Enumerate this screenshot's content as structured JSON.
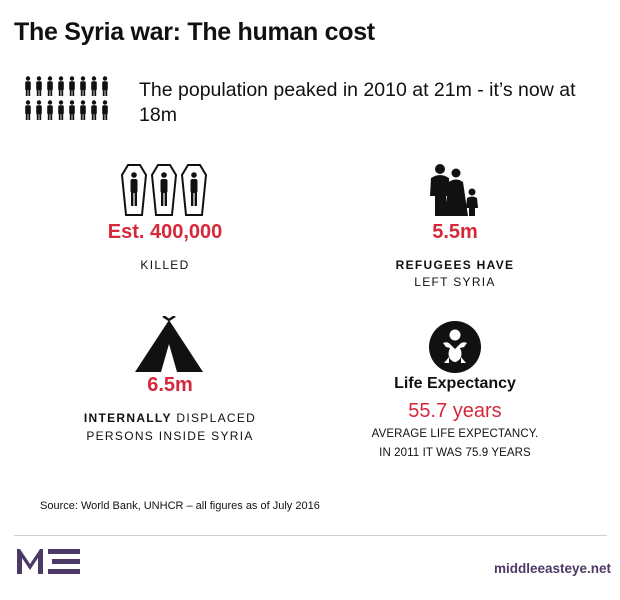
{
  "title": "The Syria war: The human cost",
  "population": {
    "text": "The population peaked in 2010 at 21m - it’s now at 18m",
    "icon": "people-icon"
  },
  "killed": {
    "figure": "Est. 400,000",
    "label": "KILLED",
    "icon": "coffins-icon"
  },
  "refugees": {
    "figure": "5.5m",
    "label_line1": "REFUGEES HAVE",
    "label_line2": "LEFT SYRIA",
    "icon": "family-icon"
  },
  "displaced": {
    "figure": "6.5m",
    "label_bold": "INTERNALLY",
    "label_rest": " DISPLACED",
    "label_line2": "PERSONS INSIDE SYRIA",
    "icon": "tent-icon"
  },
  "life_expectancy": {
    "heading": "Life Expectancy",
    "figure": "55.7 years",
    "note_line1": "AVERAGE LIFE EXPECTANCY.",
    "note_line2": "IN 2011 IT WAS 75.9 YEARS",
    "icon": "baby-icon"
  },
  "source": "Source: World Bank, UNHCR – all figures as of July 2016",
  "footer": {
    "logo": "MEE",
    "site": "middleeasteye.net"
  },
  "colors": {
    "accent": "#d6283b",
    "brand": "#4c3a66",
    "text": "#111111"
  }
}
